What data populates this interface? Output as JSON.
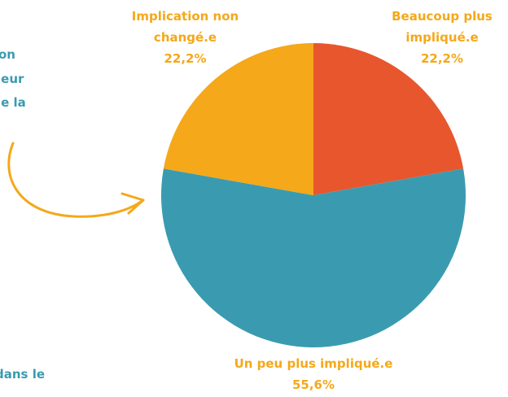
{
  "chart_data": {
    "type": "pie",
    "categories": [
      "Beaucoup plus impliqué.e",
      "Un peu plus impliqué.e",
      "Implication non changé.e"
    ],
    "values": [
      22.2,
      55.6,
      22.2
    ],
    "value_labels": [
      "22,2%",
      "55,6%",
      "22,2%"
    ],
    "colors": [
      "#e8562e",
      "#3a9bb0",
      "#f4a81a"
    ],
    "annotations": [
      "on",
      "leur",
      "le la",
      "dans le"
    ]
  }
}
